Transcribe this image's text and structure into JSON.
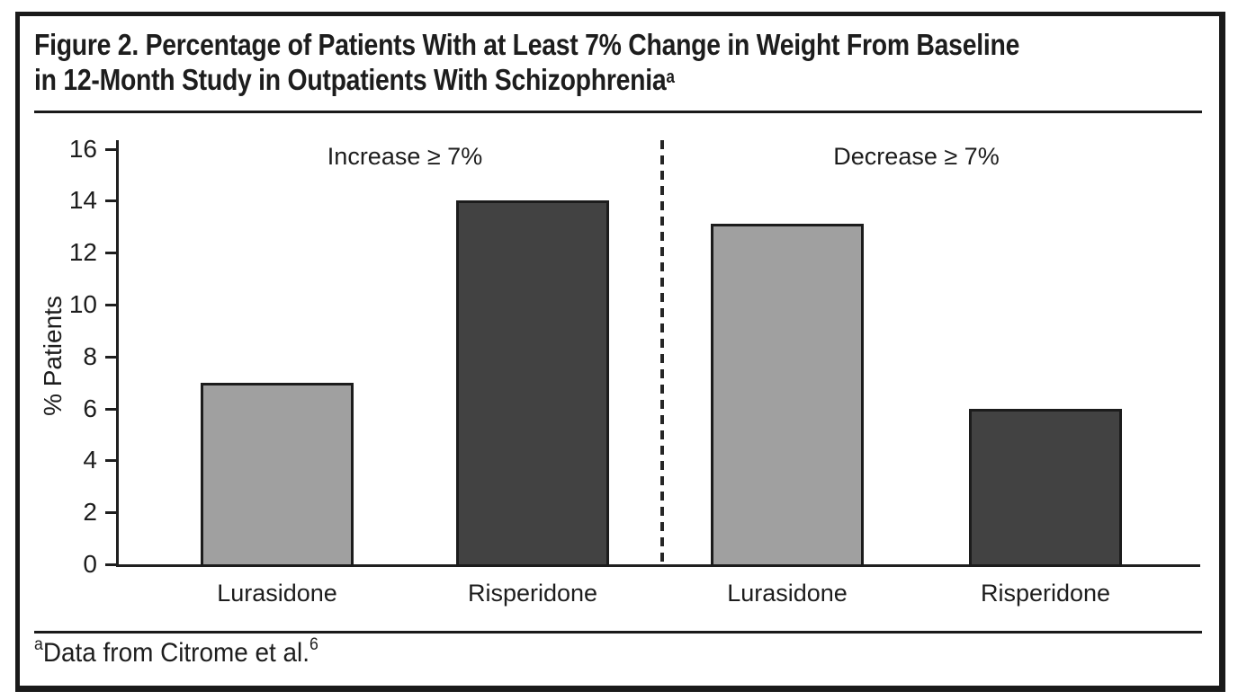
{
  "figure": {
    "title_line1": "Figure 2. Percentage of Patients With at Least 7% Change in Weight From Baseline",
    "title_line2": "in 12-Month Study in Outpatients With Schizophrenia",
    "title_superscript": "a",
    "footnote_superscript": "a",
    "footnote_text": "Data from Citrome et al.",
    "footnote_ref": "6"
  },
  "colors": {
    "lurasidone_bar": "#a0a0a0",
    "risperidone_bar": "#424242",
    "bar_outline": "#1c1c1c",
    "text": "#231f20"
  },
  "chart_data": {
    "type": "bar",
    "title": "Figure 2. Percentage of Patients With at Least 7% Change in Weight From Baseline in 12-Month Study in Outpatients With Schizophrenia",
    "xlabel": "",
    "ylabel": "% Patients",
    "ylim": [
      0,
      16
    ],
    "yticks": [
      0,
      2,
      4,
      6,
      8,
      10,
      12,
      14,
      16
    ],
    "grid": false,
    "legend": "none",
    "sections": [
      {
        "label": "Increase ≥ 7%",
        "bars": [
          {
            "category": "Lurasidone",
            "value": 7.0,
            "color": "#a0a0a0"
          },
          {
            "category": "Risperidone",
            "value": 14.0,
            "color": "#424242"
          }
        ]
      },
      {
        "label": "Decrease ≥ 7%",
        "bars": [
          {
            "category": "Lurasidone",
            "value": 13.1,
            "color": "#a0a0a0"
          },
          {
            "category": "Risperidone",
            "value": 6.0,
            "color": "#424242"
          }
        ]
      }
    ]
  }
}
